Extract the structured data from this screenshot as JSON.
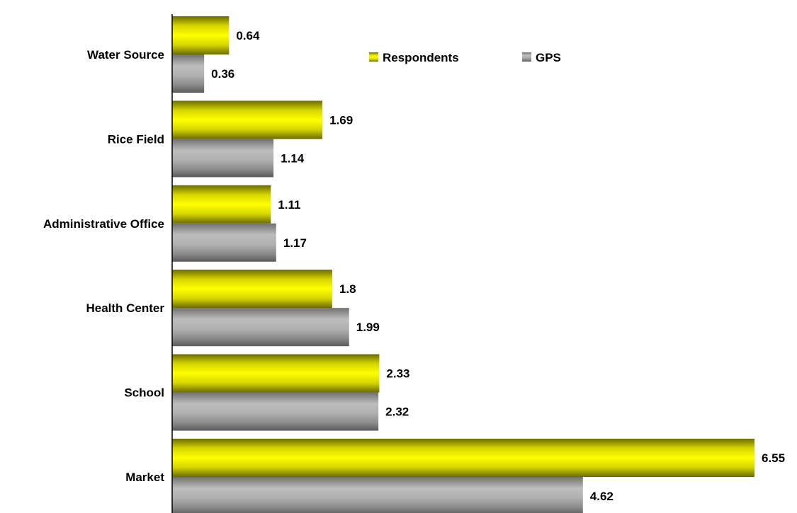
{
  "chart_data": {
    "type": "bar",
    "orientation": "horizontal",
    "categories": [
      "Water Source",
      "Rice Field",
      "Administrative Office",
      "Health Center",
      "School",
      "Market"
    ],
    "series": [
      {
        "name": "Respondents",
        "values": [
          0.64,
          1.69,
          1.11,
          1.8,
          2.33,
          6.55
        ],
        "color": "#e6e600"
      },
      {
        "name": "GPS",
        "values": [
          0.36,
          1.14,
          1.17,
          1.99,
          2.32,
          4.62
        ],
        "color": "#a6a6a6"
      }
    ],
    "data_labels": [
      [
        "0.64",
        "1.69",
        "1.11",
        "1.8",
        "2.33",
        "6.55"
      ],
      [
        "0.36",
        "1.14",
        "1.17",
        "1.99",
        "2.32",
        "4.62"
      ]
    ],
    "title": "",
    "xlabel": "",
    "ylabel": "",
    "xlim": [
      0,
      6.55
    ],
    "grid": false,
    "legend": {
      "position": "top-center",
      "entries": [
        "Respondents",
        "GPS"
      ]
    }
  }
}
